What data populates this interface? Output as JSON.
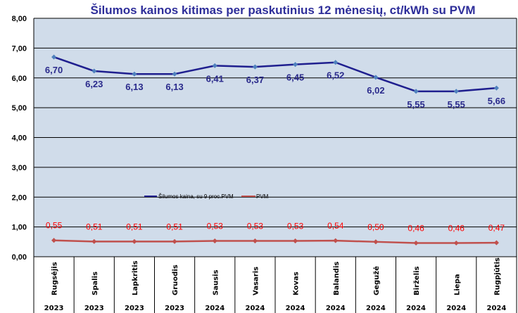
{
  "chart_data": {
    "type": "line",
    "title": "Šilumos kainos kitimas per paskutinius 12 mėnesių, ct/kWh su PVM",
    "categories": [
      "Rugsėjis",
      "Spalis",
      "Lapkritis",
      "Gruodis",
      "Sausis",
      "Vasaris",
      "Kovas",
      "Balandis",
      "Gegužė",
      "Birželis",
      "Liepa",
      "Rugpjūtis"
    ],
    "years": [
      "2023",
      "2023",
      "2023",
      "2023",
      "2024",
      "2024",
      "2024",
      "2024",
      "2024",
      "2024",
      "2024",
      "2024"
    ],
    "ylim": [
      0,
      8
    ],
    "yticks": [
      "0,00",
      "1,00",
      "2,00",
      "3,00",
      "4,00",
      "5,00",
      "6,00",
      "7,00",
      "8,00"
    ],
    "grid": true,
    "legend_placement": "center",
    "series": [
      {
        "name": "Šilumos kaina, su 9 proc.PVM",
        "color": "#1f1f8f",
        "values": [
          6.7,
          6.23,
          6.13,
          6.13,
          6.41,
          6.37,
          6.45,
          6.52,
          6.02,
          5.55,
          5.55,
          5.66
        ],
        "labels": [
          "6,70",
          "6,23",
          "6,13",
          "6,13",
          "6,41",
          "6,37",
          "6,45",
          "6,52",
          "6,02",
          "5,55",
          "5,55",
          "5,66"
        ]
      },
      {
        "name": "PVM",
        "color": "#c0504d",
        "values": [
          0.55,
          0.51,
          0.51,
          0.51,
          0.53,
          0.53,
          0.53,
          0.54,
          0.5,
          0.46,
          0.46,
          0.47
        ],
        "labels": [
          "0,55",
          "0,51",
          "0,51",
          "0,51",
          "0,53",
          "0,53",
          "0,53",
          "0,54",
          "0,50",
          "0,46",
          "0,46",
          "0,47"
        ]
      }
    ]
  }
}
